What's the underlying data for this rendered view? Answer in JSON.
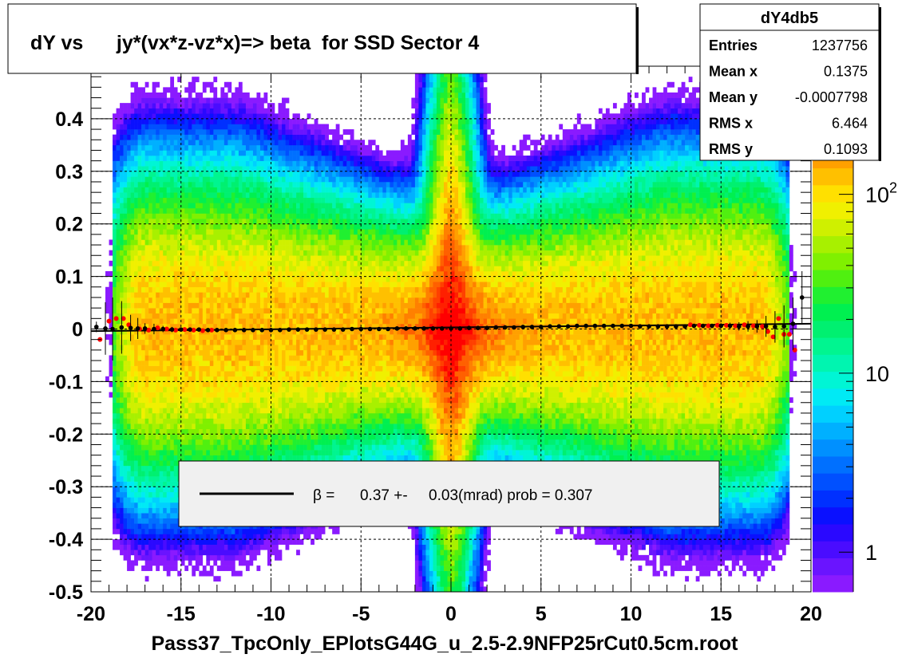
{
  "chart_data": {
    "type": "heatmap",
    "title": "dY vs      jy*(vx*z-vz*x)=> beta  for SSD Sector 4",
    "xlabel": "Pass37_TpcOnly_EPlotsG44G_u_2.5-2.9NFP25rCut0.5cm.root",
    "ylabel": "",
    "xlim": [
      -20,
      20
    ],
    "ylim": [
      -0.5,
      0.5
    ],
    "x_ticks": [
      -20,
      -15,
      -10,
      -5,
      0,
      5,
      10,
      15,
      20
    ],
    "y_ticks": [
      -0.5,
      -0.4,
      -0.3,
      -0.2,
      -0.1,
      0,
      0.1,
      0.2,
      0.3,
      0.4
    ],
    "y_tick_labels": [
      "-0.5",
      "-0.4",
      "-0.3",
      "-0.2",
      "-0.1",
      "0",
      "0.1",
      "0.2",
      "0.3",
      "0.4"
    ],
    "grid": true,
    "z_scale": "log",
    "z_ticks": [
      {
        "value": 1,
        "label": "1"
      },
      {
        "value": 10,
        "label": "10"
      },
      {
        "value": 100,
        "label": "10",
        "sup": "2"
      }
    ],
    "z_range": [
      0.6,
      520
    ],
    "colorbar_colors": [
      "#8a1aff",
      "#6a14ff",
      "#4a0cff",
      "#2a08ff",
      "#0a10ff",
      "#0030ff",
      "#0050ff",
      "#0070ff",
      "#0090ff",
      "#00b0ff",
      "#00d0ff",
      "#00eaf5",
      "#00f5d5",
      "#00f5b0",
      "#00f590",
      "#00f070",
      "#00f050",
      "#20f030",
      "#50f010",
      "#80f000",
      "#a8f000",
      "#cff000",
      "#f0f000",
      "#ffe000",
      "#ffc000",
      "#ffa000",
      "#ff8000",
      "#ff6000",
      "#ff4000",
      "#ff2000",
      "#ff0000"
    ],
    "stats": {
      "name": "dY4db5",
      "rows": [
        {
          "label": "Entries",
          "value": "1237756"
        },
        {
          "label": "Mean x",
          "value": "0.1375"
        },
        {
          "label": "Mean y",
          "value": "-0.0007798"
        },
        {
          "label": "RMS x",
          "value": "6.464"
        },
        {
          "label": "RMS y",
          "value": "0.1093"
        }
      ]
    },
    "fit_legend": "β =      0.37 +-     0.03(mrad) prob = 0.307",
    "profile_black": [
      [
        -19.7,
        0.004,
        0.01
      ],
      [
        -19.2,
        0.001,
        0.05
      ],
      [
        -18.8,
        0.0,
        0.06
      ],
      [
        -18.3,
        0.003,
        0.05
      ],
      [
        -17.8,
        0.002,
        0.025
      ],
      [
        -17.4,
        0.001,
        0.02
      ],
      [
        -17.0,
        0.001,
        0.01
      ],
      [
        -16.5,
        0.0,
        0.01
      ],
      [
        -16.0,
        0.0,
        0.006
      ],
      [
        -15.5,
        -0.001,
        0.005
      ],
      [
        -15.0,
        -0.001,
        0.004
      ],
      [
        -14.5,
        -0.001,
        0.004
      ],
      [
        -14.0,
        -0.001,
        0.003
      ],
      [
        -13.5,
        -0.002,
        0.003
      ],
      [
        -13.0,
        -0.002,
        0.003
      ],
      [
        -12.5,
        -0.002,
        0.003
      ],
      [
        -12.0,
        -0.002,
        0.003
      ],
      [
        -11.5,
        -0.002,
        0.003
      ],
      [
        -11.0,
        -0.002,
        0.003
      ],
      [
        -10.5,
        -0.002,
        0.003
      ],
      [
        -10.0,
        -0.002,
        0.003
      ],
      [
        -9.5,
        -0.002,
        0.003
      ],
      [
        -9.0,
        -0.001,
        0.003
      ],
      [
        -8.5,
        -0.001,
        0.003
      ],
      [
        -8.0,
        -0.001,
        0.003
      ],
      [
        -7.5,
        -0.001,
        0.003
      ],
      [
        -7.0,
        -0.001,
        0.003
      ],
      [
        -6.5,
        -0.001,
        0.003
      ],
      [
        -6.0,
        -0.001,
        0.003
      ],
      [
        -5.5,
        0.0,
        0.003
      ],
      [
        -5.0,
        0.0,
        0.003
      ],
      [
        -4.5,
        0.0,
        0.003
      ],
      [
        -4.0,
        0.0,
        0.003
      ],
      [
        -3.5,
        0.0,
        0.003
      ],
      [
        -3.0,
        0.001,
        0.003
      ],
      [
        -2.5,
        0.001,
        0.003
      ],
      [
        -2.0,
        0.001,
        0.003
      ],
      [
        -1.5,
        0.001,
        0.003
      ],
      [
        -1.0,
        0.001,
        0.003
      ],
      [
        -0.5,
        0.001,
        0.003
      ],
      [
        0.0,
        0.001,
        0.003
      ],
      [
        0.5,
        0.001,
        0.003
      ],
      [
        1.0,
        0.002,
        0.003
      ],
      [
        1.5,
        0.002,
        0.003
      ],
      [
        2.0,
        0.002,
        0.003
      ],
      [
        2.5,
        0.003,
        0.003
      ],
      [
        3.0,
        0.003,
        0.003
      ],
      [
        3.5,
        0.003,
        0.003
      ],
      [
        4.0,
        0.004,
        0.003
      ],
      [
        4.5,
        0.004,
        0.003
      ],
      [
        5.0,
        0.004,
        0.003
      ],
      [
        5.5,
        0.005,
        0.003
      ],
      [
        6.0,
        0.005,
        0.003
      ],
      [
        6.5,
        0.005,
        0.003
      ],
      [
        7.0,
        0.006,
        0.003
      ],
      [
        7.5,
        0.006,
        0.003
      ],
      [
        8.0,
        0.006,
        0.003
      ],
      [
        8.5,
        0.006,
        0.003
      ],
      [
        9.0,
        0.006,
        0.003
      ],
      [
        9.5,
        0.006,
        0.003
      ],
      [
        10.0,
        0.006,
        0.003
      ],
      [
        10.5,
        0.005,
        0.003
      ],
      [
        11.0,
        0.005,
        0.003
      ],
      [
        11.5,
        0.005,
        0.003
      ],
      [
        12.0,
        0.005,
        0.003
      ],
      [
        12.5,
        0.005,
        0.003
      ],
      [
        13.0,
        0.005,
        0.003
      ],
      [
        13.5,
        0.006,
        0.004
      ],
      [
        14.0,
        0.006,
        0.004
      ],
      [
        14.5,
        0.006,
        0.004
      ],
      [
        15.0,
        0.006,
        0.005
      ],
      [
        15.5,
        0.006,
        0.006
      ],
      [
        16.0,
        0.005,
        0.008
      ],
      [
        16.5,
        0.005,
        0.01
      ],
      [
        17.0,
        0.005,
        0.012
      ],
      [
        17.5,
        0.005,
        0.02
      ],
      [
        18.0,
        0.004,
        0.03
      ],
      [
        18.5,
        0.005,
        0.04
      ],
      [
        19.0,
        0.01,
        0.05
      ],
      [
        19.5,
        0.06,
        0.05
      ]
    ],
    "profile_red": [
      [
        -19.5,
        -0.02
      ],
      [
        -19.0,
        0.015
      ],
      [
        -18.6,
        0.02
      ],
      [
        -18.2,
        0.02
      ],
      [
        -17.9,
        0.008
      ],
      [
        -17.3,
        0.0
      ],
      [
        -16.8,
        -0.002
      ],
      [
        -16.3,
        0.002
      ],
      [
        -15.8,
        0.0
      ],
      [
        -15.3,
        -0.002
      ],
      [
        -14.8,
        -0.001
      ],
      [
        -14.3,
        -0.002
      ],
      [
        -13.8,
        -0.003
      ],
      [
        -13.3,
        -0.002
      ],
      [
        13.3,
        0.008
      ],
      [
        13.8,
        0.007
      ],
      [
        14.3,
        0.006
      ],
      [
        14.8,
        0.007
      ],
      [
        15.3,
        0.007
      ],
      [
        15.8,
        0.006
      ],
      [
        16.3,
        0.008
      ],
      [
        16.8,
        0.006
      ],
      [
        17.3,
        0.005
      ],
      [
        17.6,
        -0.005
      ],
      [
        17.9,
        -0.015
      ],
      [
        18.2,
        0.02
      ],
      [
        18.5,
        -0.01
      ],
      [
        18.8,
        -0.01
      ],
      [
        19.1,
        -0.04
      ]
    ],
    "fit_line": {
      "x": [
        -20,
        20
      ],
      "y": [
        -0.004,
        0.01
      ]
    }
  }
}
